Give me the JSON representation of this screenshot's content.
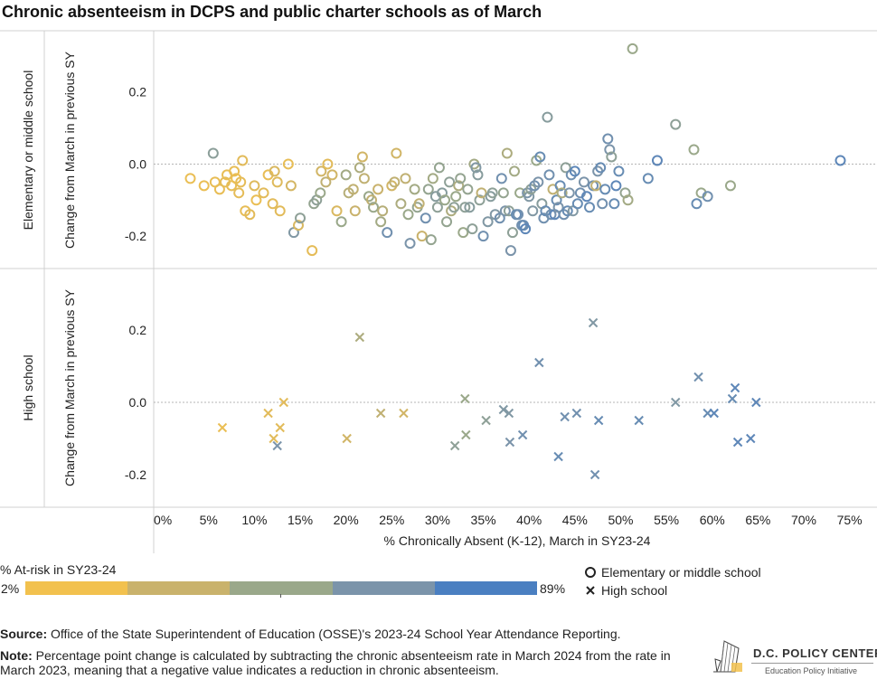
{
  "title": "Chronic absenteeism in DCPS and public charter schools as of March",
  "chart_data": {
    "type": "scatter",
    "x_label": "% Chronically Absent (K-12), March in SY23-24",
    "x_range": [
      -1,
      78
    ],
    "x_ticks": [
      0,
      5,
      10,
      15,
      20,
      25,
      30,
      35,
      40,
      45,
      50,
      55,
      60,
      65,
      70,
      75
    ],
    "x_tick_labels": [
      "0%",
      "5%",
      "10%",
      "15%",
      "20%",
      "25%",
      "30%",
      "35%",
      "40%",
      "45%",
      "50%",
      "55%",
      "60%",
      "65%",
      "70%",
      "75%"
    ],
    "y_label": "Change from March in previous SY",
    "y_range": [
      -0.29,
      0.37
    ],
    "y_ticks": [
      -0.2,
      0.0,
      0.2
    ],
    "y_tick_labels": [
      "-0.2",
      "0.0",
      "0.2"
    ],
    "panels": [
      {
        "label": "Elementary or middle school",
        "marker": "circle",
        "points": [
          [
            3,
            -0.04,
            0.05
          ],
          [
            4.5,
            -0.06,
            0.05
          ],
          [
            5.7,
            -0.05,
            0.06
          ],
          [
            6.2,
            -0.07,
            0.06
          ],
          [
            6.8,
            -0.05,
            0.08
          ],
          [
            7,
            -0.03,
            0.06
          ],
          [
            7.5,
            -0.06,
            0.07
          ],
          [
            7.8,
            -0.02,
            0.06
          ],
          [
            8,
            -0.04,
            0.05
          ],
          [
            8.3,
            -0.08,
            0.08
          ],
          [
            8.5,
            -0.05,
            0.08
          ],
          [
            8.7,
            0.01,
            0.1
          ],
          [
            9,
            -0.13,
            0.07
          ],
          [
            9.5,
            -0.14,
            0.1
          ],
          [
            10,
            -0.06,
            0.12
          ],
          [
            10.2,
            -0.1,
            0.05
          ],
          [
            11,
            -0.08,
            0.1
          ],
          [
            11.5,
            -0.03,
            0.06
          ],
          [
            12,
            -0.11,
            0.1
          ],
          [
            12.2,
            -0.02,
            0.15
          ],
          [
            12.5,
            -0.05,
            0.12
          ],
          [
            12.8,
            -0.13,
            0.1
          ],
          [
            5.5,
            0.03,
            0.62
          ],
          [
            13.7,
            0,
            0.07
          ],
          [
            14,
            -0.06,
            0.18
          ],
          [
            14.3,
            -0.19,
            0.7
          ],
          [
            14.8,
            -0.17,
            0.15
          ],
          [
            15,
            -0.15,
            0.6
          ],
          [
            16.3,
            -0.24,
            0.08
          ],
          [
            16.5,
            -0.11,
            0.55
          ],
          [
            16.8,
            -0.1,
            0.6
          ],
          [
            17.2,
            -0.08,
            0.5
          ],
          [
            17.3,
            -0.02,
            0.2
          ],
          [
            17.8,
            -0.05,
            0.3
          ],
          [
            18,
            0,
            0.1
          ],
          [
            18.5,
            -0.03,
            0.2
          ],
          [
            19,
            -0.13,
            0.15
          ],
          [
            19.5,
            -0.16,
            0.5
          ],
          [
            20,
            -0.03,
            0.45
          ],
          [
            20.3,
            -0.08,
            0.35
          ],
          [
            20.8,
            -0.07,
            0.3
          ],
          [
            21,
            -0.13,
            0.25
          ],
          [
            21.5,
            -0.01,
            0.4
          ],
          [
            21.8,
            0.02,
            0.2
          ],
          [
            22,
            -0.04,
            0.3
          ],
          [
            22.5,
            -0.09,
            0.5
          ],
          [
            22.8,
            -0.1,
            0.3
          ],
          [
            23,
            -0.12,
            0.5
          ],
          [
            23.5,
            -0.07,
            0.25
          ],
          [
            23.8,
            -0.16,
            0.45
          ],
          [
            24,
            -0.13,
            0.35
          ],
          [
            24.5,
            -0.19,
            0.8
          ],
          [
            25,
            -0.06,
            0.2
          ],
          [
            25.3,
            -0.05,
            0.3
          ],
          [
            25.5,
            0.03,
            0.2
          ],
          [
            26,
            -0.11,
            0.4
          ],
          [
            26.5,
            -0.04,
            0.3
          ],
          [
            26.8,
            -0.14,
            0.5
          ],
          [
            27,
            -0.22,
            0.75
          ],
          [
            27.5,
            -0.07,
            0.45
          ],
          [
            27.8,
            -0.12,
            0.55
          ],
          [
            28,
            -0.11,
            0.3
          ],
          [
            28.3,
            -0.2,
            0.25
          ],
          [
            28.7,
            -0.15,
            0.8
          ],
          [
            29,
            -0.07,
            0.55
          ],
          [
            29.3,
            -0.21,
            0.55
          ],
          [
            29.5,
            -0.04,
            0.45
          ],
          [
            29.8,
            -0.09,
            0.65
          ],
          [
            30,
            -0.12,
            0.6
          ],
          [
            30.2,
            -0.01,
            0.55
          ],
          [
            30.5,
            -0.08,
            0.65
          ],
          [
            30.8,
            -0.1,
            0.5
          ],
          [
            31,
            -0.16,
            0.55
          ],
          [
            31.3,
            -0.05,
            0.6
          ],
          [
            31.5,
            -0.13,
            0.4
          ],
          [
            31.8,
            -0.12,
            0.6
          ],
          [
            32,
            -0.09,
            0.5
          ],
          [
            32.3,
            -0.06,
            0.4
          ],
          [
            32.5,
            -0.04,
            0.55
          ],
          [
            32.8,
            -0.19,
            0.5
          ],
          [
            33,
            -0.12,
            0.6
          ],
          [
            33.3,
            -0.07,
            0.55
          ],
          [
            33.5,
            -0.12,
            0.65
          ],
          [
            33.8,
            -0.18,
            0.6
          ],
          [
            34,
            0,
            0.45
          ],
          [
            34.2,
            -0.01,
            0.7
          ],
          [
            34.4,
            -0.03,
            0.65
          ],
          [
            34.6,
            -0.1,
            0.6
          ],
          [
            34.8,
            -0.08,
            0.3
          ],
          [
            35,
            -0.2,
            0.8
          ],
          [
            35.5,
            -0.16,
            0.7
          ],
          [
            35.8,
            -0.09,
            0.65
          ],
          [
            36,
            -0.08,
            0.6
          ],
          [
            36.3,
            -0.14,
            0.7
          ],
          [
            36.8,
            -0.15,
            0.8
          ],
          [
            37,
            -0.04,
            0.8
          ],
          [
            37.2,
            -0.08,
            0.55
          ],
          [
            37.4,
            -0.13,
            0.75
          ],
          [
            37.6,
            0.03,
            0.4
          ],
          [
            37.8,
            -0.13,
            0.6
          ],
          [
            38,
            -0.24,
            0.75
          ],
          [
            38.2,
            -0.19,
            0.6
          ],
          [
            38.4,
            -0.02,
            0.45
          ],
          [
            38.6,
            -0.14,
            0.85
          ],
          [
            38.8,
            -0.14,
            0.8
          ],
          [
            39,
            -0.08,
            0.5
          ],
          [
            39.2,
            -0.17,
            0.8
          ],
          [
            39.4,
            -0.17,
            0.85
          ],
          [
            39.6,
            -0.18,
            0.9
          ],
          [
            39.8,
            -0.08,
            0.75
          ],
          [
            40,
            -0.09,
            0.7
          ],
          [
            40.2,
            -0.07,
            0.6
          ],
          [
            40.4,
            -0.13,
            0.7
          ],
          [
            40.6,
            -0.06,
            0.8
          ],
          [
            40.8,
            0.01,
            0.5
          ],
          [
            41,
            -0.05,
            0.75
          ],
          [
            41.2,
            0.02,
            0.85
          ],
          [
            41.4,
            -0.11,
            0.65
          ],
          [
            41.6,
            -0.15,
            0.8
          ],
          [
            41.8,
            -0.13,
            0.85
          ],
          [
            42,
            0.13,
            0.65
          ],
          [
            42.2,
            -0.03,
            0.8
          ],
          [
            42.4,
            -0.14,
            0.8
          ],
          [
            42.6,
            -0.07,
            0.3
          ],
          [
            42.8,
            -0.14,
            0.9
          ],
          [
            43,
            -0.1,
            0.85
          ],
          [
            43.2,
            -0.12,
            0.75
          ],
          [
            43.4,
            -0.06,
            0.85
          ],
          [
            43.6,
            -0.08,
            0.4
          ],
          [
            43.8,
            -0.14,
            0.8
          ],
          [
            44,
            -0.01,
            0.6
          ],
          [
            44.2,
            -0.13,
            0.85
          ],
          [
            44.4,
            -0.08,
            0.75
          ],
          [
            44.6,
            -0.03,
            0.8
          ],
          [
            44.8,
            -0.13,
            0.7
          ],
          [
            45,
            -0.02,
            0.9
          ],
          [
            45.3,
            -0.11,
            0.85
          ],
          [
            45.6,
            -0.08,
            0.8
          ],
          [
            46,
            -0.05,
            0.75
          ],
          [
            46.3,
            -0.09,
            0.9
          ],
          [
            46.6,
            -0.12,
            0.85
          ],
          [
            47,
            -0.06,
            0.8
          ],
          [
            47.3,
            -0.06,
            0.3
          ],
          [
            47.5,
            -0.02,
            0.75
          ],
          [
            47.8,
            -0.01,
            0.85
          ],
          [
            48,
            -0.11,
            0.8
          ],
          [
            48.3,
            -0.07,
            0.85
          ],
          [
            48.6,
            0.07,
            0.8
          ],
          [
            48.8,
            0.04,
            0.75
          ],
          [
            49,
            0.02,
            0.6
          ],
          [
            49.3,
            -0.11,
            0.85
          ],
          [
            49.5,
            -0.06,
            0.9
          ],
          [
            49.8,
            -0.02,
            0.85
          ],
          [
            50.5,
            -0.08,
            0.55
          ],
          [
            50.8,
            -0.1,
            0.45
          ],
          [
            51.3,
            0.32,
            0.5
          ],
          [
            53,
            -0.04,
            0.85
          ],
          [
            54,
            0.01,
            0.9
          ],
          [
            56,
            0.11,
            0.6
          ],
          [
            58,
            0.04,
            0.5
          ],
          [
            58.3,
            -0.11,
            0.85
          ],
          [
            58.8,
            -0.08,
            0.5
          ],
          [
            59.5,
            -0.09,
            0.8
          ],
          [
            62,
            -0.06,
            0.5
          ],
          [
            74,
            0.01,
            0.9
          ]
        ]
      },
      {
        "label": "High school",
        "marker": "x",
        "points": [
          [
            6.5,
            -0.07,
            0.05
          ],
          [
            11.5,
            -0.03,
            0.1
          ],
          [
            12.1,
            -0.1,
            0.1
          ],
          [
            12.8,
            -0.07,
            0.1
          ],
          [
            13.2,
            0,
            0.1
          ],
          [
            12.5,
            -0.12,
            0.75
          ],
          [
            20.1,
            -0.1,
            0.2
          ],
          [
            21.5,
            0.18,
            0.4
          ],
          [
            23.8,
            -0.03,
            0.3
          ],
          [
            26.3,
            -0.03,
            0.2
          ],
          [
            31.9,
            -0.12,
            0.6
          ],
          [
            33,
            0.01,
            0.5
          ],
          [
            33.1,
            -0.09,
            0.5
          ],
          [
            35.3,
            -0.05,
            0.6
          ],
          [
            37.2,
            -0.02,
            0.7
          ],
          [
            37.8,
            -0.03,
            0.7
          ],
          [
            37.9,
            -0.11,
            0.75
          ],
          [
            39.3,
            -0.09,
            0.8
          ],
          [
            41.1,
            0.11,
            0.8
          ],
          [
            43.2,
            -0.15,
            0.85
          ],
          [
            43.9,
            -0.04,
            0.8
          ],
          [
            45.2,
            -0.03,
            0.8
          ],
          [
            47,
            0.22,
            0.7
          ],
          [
            47.6,
            -0.05,
            0.85
          ],
          [
            47.2,
            -0.2,
            0.8
          ],
          [
            52,
            -0.05,
            0.85
          ],
          [
            56,
            0,
            0.7
          ],
          [
            58.5,
            0.07,
            0.8
          ],
          [
            59.5,
            -0.03,
            0.85
          ],
          [
            60.2,
            -0.03,
            0.9
          ],
          [
            62.2,
            0.01,
            0.85
          ],
          [
            62.5,
            0.04,
            0.9
          ],
          [
            62.8,
            -0.11,
            0.9
          ],
          [
            64.2,
            -0.1,
            0.9
          ],
          [
            64.8,
            0,
            0.9
          ]
        ]
      }
    ],
    "color_legend": {
      "title": "% At-risk in SY23-24",
      "min_label": "2%",
      "max_label": "89%",
      "colors": [
        "#f2c14e",
        "#c9b26c",
        "#9aa88a",
        "#7b94aa",
        "#4a7fc1"
      ]
    },
    "shape_legend": [
      {
        "shape": "circle",
        "label": "Elementary or middle school"
      },
      {
        "shape": "x",
        "label": "High school"
      }
    ]
  },
  "footer": {
    "source_label": "Source:",
    "source_text": "Office of the State Superintendent of Education (OSSE)'s 2023-24 School Year Attendance Reporting.",
    "note_label": "Note:",
    "note_text": "Percentage point change is calculated by subtracting the chronic absenteeism rate in March 2024 from the rate in March 2023, meaning that a negative value indicates a reduction in chronic absenteeism."
  },
  "logo": {
    "name": "D.C. POLICY CENTER",
    "subtitle": "Education Policy Initiative"
  }
}
